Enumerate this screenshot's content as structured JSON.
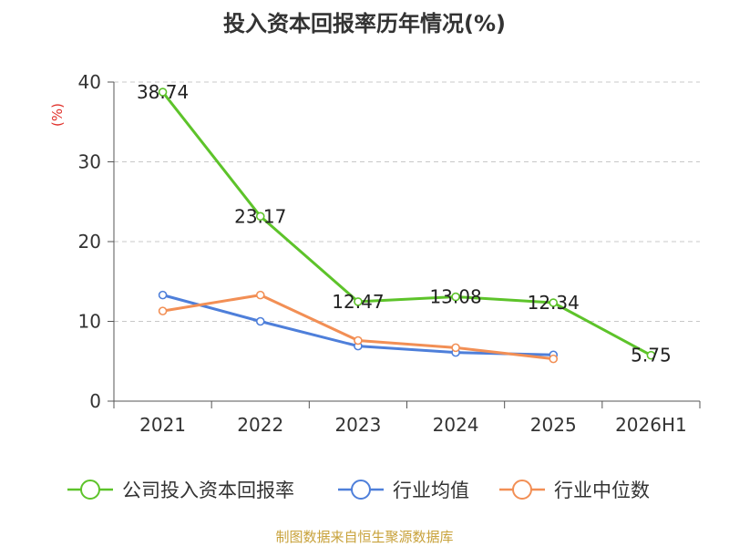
{
  "title": "投入资本回报率历年情况(%)",
  "source": "制图数据来自恒生聚源数据库",
  "chart_data": {
    "type": "line",
    "title": "投入资本回报率历年情况(%)",
    "ylabel": "(%)",
    "xlabel": "",
    "categories": [
      "2021",
      "2022",
      "2023",
      "2024",
      "2025",
      "2026H1"
    ],
    "ylim": [
      0,
      40
    ],
    "yticks": [
      0,
      10,
      20,
      30,
      40
    ],
    "grid": true,
    "legend_position": "bottom",
    "series": [
      {
        "name": "公司投入资本回报率",
        "color": "#5dc32a",
        "values": [
          38.74,
          23.17,
          12.47,
          13.08,
          12.34,
          5.75
        ],
        "labels": [
          "38.74",
          "23.17",
          "12.47",
          "13.08",
          "12.34",
          "5.75"
        ]
      },
      {
        "name": "行业均值",
        "color": "#4e7fda",
        "values": [
          13.3,
          10.0,
          6.9,
          6.1,
          5.8,
          null
        ]
      },
      {
        "name": "行业中位数",
        "color": "#f28f55",
        "values": [
          11.3,
          13.3,
          7.6,
          6.7,
          5.3,
          null
        ]
      }
    ]
  }
}
